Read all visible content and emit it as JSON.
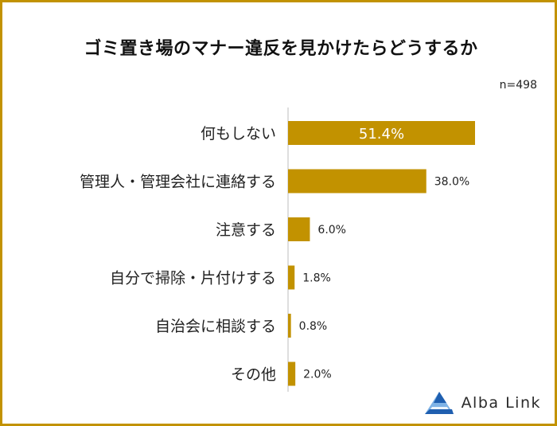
{
  "title": "ゴミ置き場のマナー違反を見かけたらどうするか",
  "sample_size": "n=498",
  "logo_text": "Alba Link",
  "colors": {
    "bar": "#c29200",
    "frame": "#c29200",
    "axis": "#bdbdbd",
    "logo_blue": "#1f5fb0",
    "logo_light": "#7fb3e6"
  },
  "chart_data": {
    "type": "bar",
    "orientation": "horizontal",
    "categories": [
      "何もしない",
      "管理人・管理会社に連絡する",
      "注意する",
      "自分で掃除・片付けする",
      "自治会に相談する",
      "その他"
    ],
    "values": [
      51.4,
      38.0,
      6.0,
      1.8,
      0.8,
      2.0
    ],
    "value_labels": [
      "51.4%",
      "38.0%",
      "6.0%",
      "1.8%",
      "0.8%",
      "2.0%"
    ],
    "unit": "%",
    "title": "ゴミ置き場のマナー違反を見かけたらどうするか",
    "xlabel": "",
    "ylabel": "",
    "xlim": [
      0,
      60
    ],
    "grid": false,
    "legend": "none"
  }
}
